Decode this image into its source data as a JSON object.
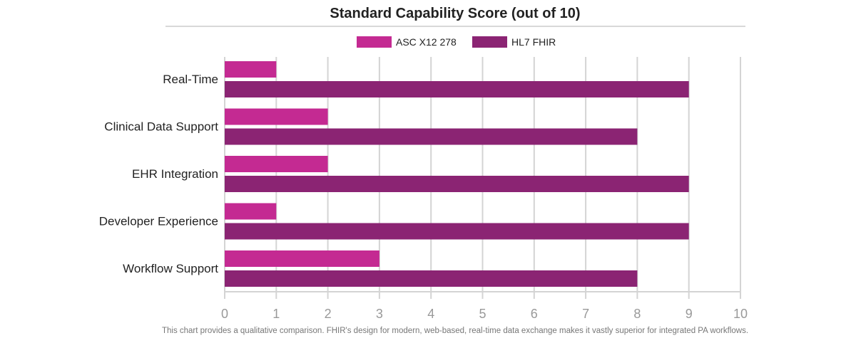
{
  "chart_data": {
    "type": "bar",
    "orientation": "horizontal",
    "title": "Standard Capability Score (out of 10)",
    "categories": [
      "Real-Time",
      "Clinical Data Support",
      "EHR Integration",
      "Developer Experience",
      "Workflow Support"
    ],
    "series": [
      {
        "name": "ASC X12 278",
        "color": "#C42A92",
        "values": [
          1,
          2,
          2,
          1,
          3
        ]
      },
      {
        "name": "HL7 FHIR",
        "color": "#8B2473",
        "values": [
          9,
          8,
          9,
          9,
          8
        ]
      }
    ],
    "xlim": [
      0,
      10
    ],
    "xticks": [
      0,
      1,
      2,
      3,
      4,
      5,
      6,
      7,
      8,
      9,
      10
    ],
    "grid": true,
    "legend": "top",
    "footnote": "This chart provides a qualitative comparison. FHIR's design for modern, web-based, real-time data exchange makes it vastly superior for integrated PA workflows."
  }
}
